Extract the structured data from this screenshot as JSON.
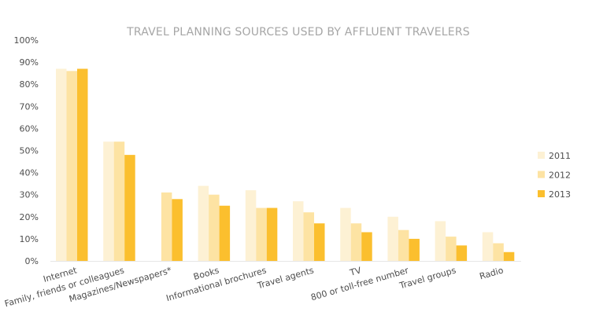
{
  "chart_data": {
    "type": "bar",
    "title": "TRAVEL PLANNING SOURCES USED BY AFFLUENT TRAVELERS",
    "xlabel": "",
    "ylabel": "",
    "ylim": [
      0,
      100
    ],
    "yticks": [
      "0%",
      "10%",
      "20%",
      "30%",
      "40%",
      "50%",
      "60%",
      "70%",
      "80%",
      "90%",
      "100%"
    ],
    "grid": false,
    "legend_position": "right",
    "categories": [
      "Internet",
      "Family, friends or colleagues",
      "Magazines/Newspapers*",
      "Books",
      "Informational brochures",
      "Travel agents",
      "TV",
      "800 or toll-free number",
      "Travel groups",
      "Radio"
    ],
    "series": [
      {
        "name": "2011",
        "color": "#fdf1d4",
        "values": [
          87,
          54,
          null,
          34,
          32,
          27,
          24,
          20,
          18,
          13
        ]
      },
      {
        "name": "2012",
        "color": "#fde3a3",
        "values": [
          86,
          54,
          31,
          30,
          24,
          22,
          17,
          14,
          11,
          8
        ]
      },
      {
        "name": "2013",
        "color": "#fbbf2e",
        "values": [
          87,
          48,
          28,
          25,
          24,
          17,
          13,
          10,
          7,
          4
        ]
      }
    ]
  }
}
